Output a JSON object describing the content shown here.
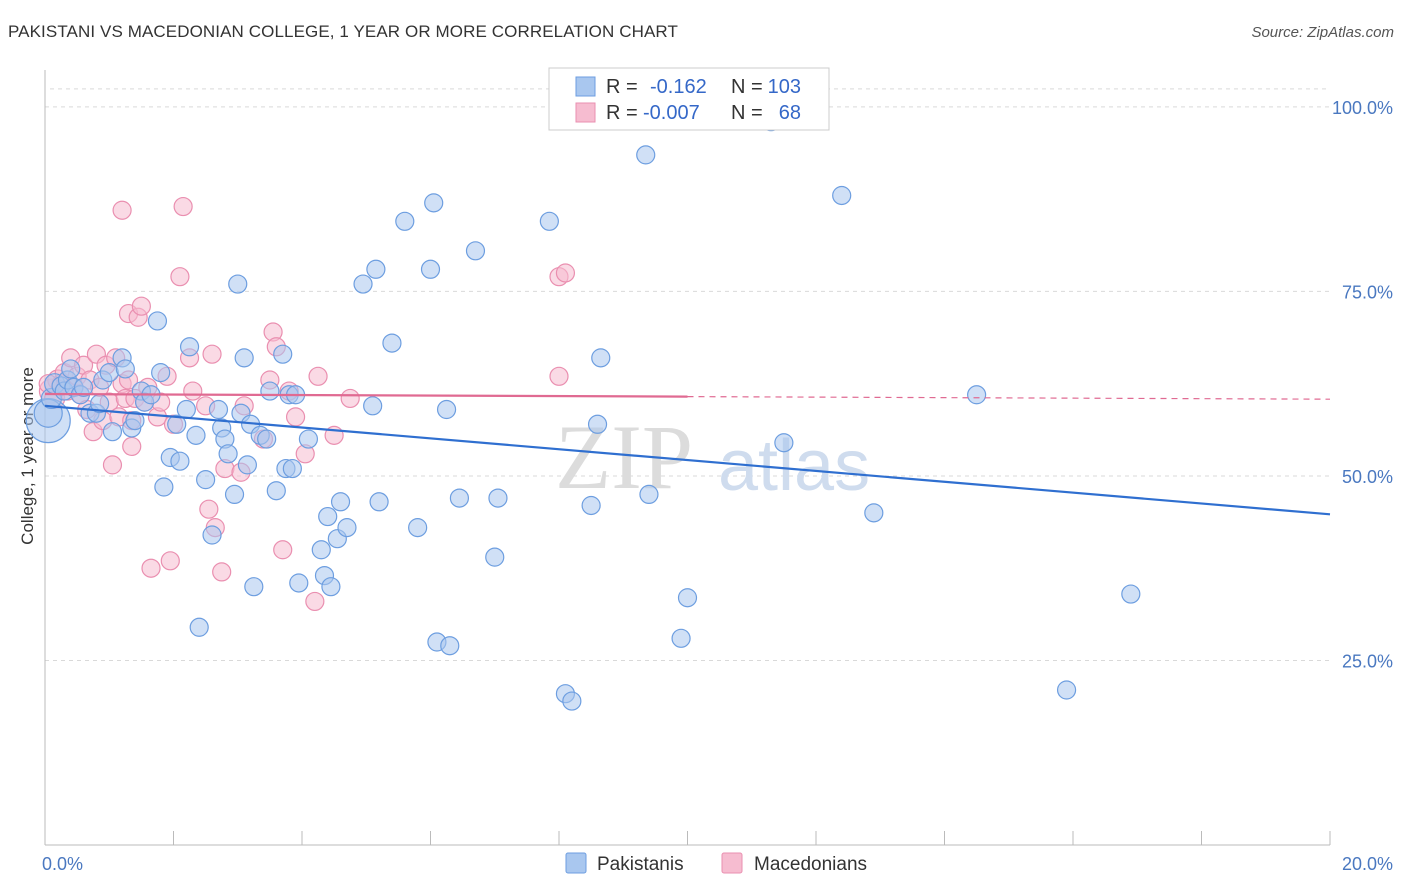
{
  "header": {
    "title": "PAKISTANI VS MACEDONIAN COLLEGE, 1 YEAR OR MORE CORRELATION CHART",
    "source": "Source: ZipAtlas.com"
  },
  "watermark": {
    "zip": "ZIP",
    "atlas": "atlas"
  },
  "colors": {
    "blue_fill": "#a9c7ef",
    "blue_stroke": "#6d9ee0",
    "blue_line": "#2f6fd0",
    "pink_fill": "#f6bcd0",
    "pink_stroke": "#ea8fb0",
    "pink_line": "#e06a92",
    "grid": "#d9d9d9",
    "tick_label": "#4a78c0"
  },
  "legend": {
    "r_label": "R =",
    "n_label": "N =",
    "rows": [
      {
        "r": "-0.162",
        "n": "103"
      },
      {
        "r": "-0.007",
        "n": "68"
      }
    ]
  },
  "chart_data": {
    "type": "scatter",
    "xlabel": "",
    "ylabel": "College, 1 year or more",
    "xlim": [
      0,
      20
    ],
    "ylim": [
      0,
      105
    ],
    "x_tick_labels": [
      "0.0%",
      "20.0%"
    ],
    "y_tick_values": [
      25,
      50,
      75,
      100
    ],
    "y_tick_labels": [
      "25.0%",
      "50.0%",
      "75.0%",
      "100.0%"
    ],
    "grid": true,
    "legend_position": "top-center",
    "series": [
      {
        "name": "Pakistanis",
        "r": -0.162,
        "n": 103,
        "trend": {
          "x": [
            0,
            20
          ],
          "y": [
            59.5,
            44.8
          ],
          "dashed_after": null
        },
        "points": [
          [
            0.05,
            57.5,
            22
          ],
          [
            0.05,
            58.5,
            14
          ],
          [
            0.1,
            60.5,
            10
          ],
          [
            0.15,
            62.5,
            10
          ],
          [
            0.25,
            62.2,
            9
          ],
          [
            0.3,
            61.5,
            9
          ],
          [
            0.35,
            63.0,
            9
          ],
          [
            0.4,
            64.5,
            9
          ],
          [
            0.45,
            62.0,
            9
          ],
          [
            0.55,
            61.0,
            9
          ],
          [
            0.6,
            62.0,
            9
          ],
          [
            0.7,
            58.5,
            9
          ],
          [
            0.8,
            58.5,
            9
          ],
          [
            0.85,
            59.8,
            9
          ],
          [
            0.9,
            63.0,
            9
          ],
          [
            1.0,
            64.0,
            9
          ],
          [
            1.05,
            56.0,
            9
          ],
          [
            1.2,
            66.0,
            9
          ],
          [
            1.25,
            64.5,
            9
          ],
          [
            1.35,
            56.5,
            9
          ],
          [
            1.4,
            57.5,
            9
          ],
          [
            1.5,
            61.5,
            9
          ],
          [
            1.55,
            60.0,
            9
          ],
          [
            1.65,
            61.0,
            9
          ],
          [
            1.75,
            71.0,
            9
          ],
          [
            1.8,
            64.0,
            9
          ],
          [
            1.85,
            48.5,
            9
          ],
          [
            1.95,
            52.5,
            9
          ],
          [
            2.05,
            57.0,
            9
          ],
          [
            2.1,
            52.0,
            9
          ],
          [
            2.2,
            59.0,
            9
          ],
          [
            2.25,
            67.5,
            9
          ],
          [
            2.35,
            55.5,
            9
          ],
          [
            2.4,
            29.5,
            9
          ],
          [
            2.5,
            49.5,
            9
          ],
          [
            2.6,
            42.0,
            9
          ],
          [
            2.7,
            59.0,
            9
          ],
          [
            2.75,
            56.5,
            9
          ],
          [
            2.8,
            55.0,
            9
          ],
          [
            2.85,
            53.0,
            9
          ],
          [
            2.95,
            47.5,
            9
          ],
          [
            3.0,
            76.0,
            9
          ],
          [
            3.05,
            58.5,
            9
          ],
          [
            3.1,
            66.0,
            9
          ],
          [
            3.15,
            51.5,
            9
          ],
          [
            3.2,
            57.0,
            9
          ],
          [
            3.25,
            35.0,
            9
          ],
          [
            3.35,
            55.5,
            9
          ],
          [
            3.45,
            55.0,
            9
          ],
          [
            3.5,
            61.5,
            9
          ],
          [
            3.6,
            48.0,
            9
          ],
          [
            3.7,
            66.5,
            9
          ],
          [
            3.75,
            51.0,
            9
          ],
          [
            3.8,
            61.0,
            9
          ],
          [
            3.85,
            51.0,
            9
          ],
          [
            3.9,
            61.0,
            9
          ],
          [
            3.95,
            35.5,
            9
          ],
          [
            4.1,
            55.0,
            9
          ],
          [
            4.3,
            40.0,
            9
          ],
          [
            4.35,
            36.5,
            9
          ],
          [
            4.4,
            44.5,
            9
          ],
          [
            4.45,
            35.0,
            9
          ],
          [
            4.55,
            41.5,
            9
          ],
          [
            4.6,
            46.5,
            9
          ],
          [
            4.7,
            43.0,
            9
          ],
          [
            4.95,
            76.0,
            9
          ],
          [
            5.1,
            59.5,
            9
          ],
          [
            5.15,
            78.0,
            9
          ],
          [
            5.2,
            46.5,
            9
          ],
          [
            5.4,
            68.0,
            9
          ],
          [
            5.6,
            84.5,
            9
          ],
          [
            5.8,
            43.0,
            9
          ],
          [
            6.0,
            78.0,
            9
          ],
          [
            6.05,
            87.0,
            9
          ],
          [
            6.1,
            27.5,
            9
          ],
          [
            6.25,
            59.0,
            9
          ],
          [
            6.3,
            27.0,
            9
          ],
          [
            6.45,
            47.0,
            9
          ],
          [
            6.7,
            80.5,
            9
          ],
          [
            7.0,
            39.0,
            9
          ],
          [
            7.05,
            47.0,
            9
          ],
          [
            7.85,
            84.5,
            9
          ],
          [
            8.0,
            98.5,
            9
          ],
          [
            8.1,
            20.5,
            9
          ],
          [
            8.2,
            19.5,
            9
          ],
          [
            8.5,
            46.0,
            9
          ],
          [
            8.6,
            57.0,
            9
          ],
          [
            8.65,
            66.0,
            9
          ],
          [
            9.35,
            93.5,
            9
          ],
          [
            9.4,
            47.5,
            9
          ],
          [
            9.9,
            28.0,
            9
          ],
          [
            10.0,
            33.5,
            9
          ],
          [
            11.3,
            98.0,
            9
          ],
          [
            11.5,
            54.5,
            9
          ],
          [
            12.4,
            88.0,
            9
          ],
          [
            12.9,
            45.0,
            9
          ],
          [
            14.5,
            61.0,
            9
          ],
          [
            16.9,
            34.0,
            9
          ],
          [
            15.9,
            21.0,
            9
          ]
        ]
      },
      {
        "name": "Macedonians",
        "r": -0.007,
        "n": 68,
        "trend": {
          "x": [
            0,
            20
          ],
          "y": [
            61.1,
            60.4
          ],
          "dashed_after": 10
        },
        "points": [
          [
            0.1,
            61.5,
            12
          ],
          [
            0.15,
            60.5,
            10
          ],
          [
            0.2,
            63.0,
            10
          ],
          [
            0.25,
            62.5,
            9
          ],
          [
            0.3,
            64.0,
            9
          ],
          [
            0.35,
            61.5,
            9
          ],
          [
            0.4,
            66.0,
            9
          ],
          [
            0.45,
            62.0,
            9
          ],
          [
            0.5,
            63.5,
            9
          ],
          [
            0.55,
            61.0,
            9
          ],
          [
            0.6,
            65.0,
            9
          ],
          [
            0.65,
            59.0,
            9
          ],
          [
            0.7,
            63.0,
            9
          ],
          [
            0.75,
            56.0,
            9
          ],
          [
            0.8,
            66.5,
            9
          ],
          [
            0.85,
            62.0,
            9
          ],
          [
            0.9,
            57.5,
            9
          ],
          [
            0.95,
            65.0,
            9
          ],
          [
            1.0,
            60.0,
            9
          ],
          [
            1.05,
            51.5,
            9
          ],
          [
            1.1,
            66.0,
            9
          ],
          [
            1.15,
            58.0,
            9
          ],
          [
            1.2,
            62.5,
            9
          ],
          [
            1.25,
            60.5,
            9
          ],
          [
            1.3,
            63.0,
            9
          ],
          [
            1.35,
            57.5,
            9
          ],
          [
            1.4,
            60.5,
            9
          ],
          [
            1.2,
            86.0,
            9
          ],
          [
            1.3,
            72.0,
            9
          ],
          [
            1.35,
            54.0,
            9
          ],
          [
            1.45,
            71.5,
            9
          ],
          [
            1.5,
            73.0,
            9
          ],
          [
            1.55,
            60.0,
            9
          ],
          [
            1.6,
            62.0,
            9
          ],
          [
            1.65,
            37.5,
            9
          ],
          [
            1.75,
            58.0,
            9
          ],
          [
            1.8,
            60.0,
            9
          ],
          [
            1.9,
            63.5,
            9
          ],
          [
            1.95,
            38.5,
            9
          ],
          [
            2.0,
            57.0,
            9
          ],
          [
            2.1,
            77.0,
            9
          ],
          [
            2.15,
            86.5,
            9
          ],
          [
            2.25,
            66.0,
            9
          ],
          [
            2.3,
            61.5,
            9
          ],
          [
            2.5,
            59.5,
            9
          ],
          [
            2.55,
            45.5,
            9
          ],
          [
            2.6,
            66.5,
            9
          ],
          [
            2.65,
            43.0,
            9
          ],
          [
            2.75,
            37.0,
            9
          ],
          [
            2.8,
            51.0,
            9
          ],
          [
            3.05,
            50.5,
            9
          ],
          [
            3.1,
            59.5,
            9
          ],
          [
            3.4,
            55.0,
            9
          ],
          [
            3.5,
            63.0,
            9
          ],
          [
            3.55,
            69.5,
            9
          ],
          [
            3.6,
            67.5,
            9
          ],
          [
            3.7,
            40.0,
            9
          ],
          [
            3.8,
            61.5,
            9
          ],
          [
            3.9,
            58.0,
            9
          ],
          [
            4.05,
            53.0,
            9
          ],
          [
            4.2,
            33.0,
            9
          ],
          [
            4.25,
            63.5,
            9
          ],
          [
            4.5,
            55.5,
            9
          ],
          [
            4.75,
            60.5,
            9
          ],
          [
            8.0,
            77.0,
            9
          ],
          [
            8.1,
            77.5,
            9
          ],
          [
            8.0,
            63.5,
            9
          ],
          [
            0.05,
            62.5,
            9
          ]
        ]
      }
    ]
  },
  "bottom_legend": {
    "items": [
      "Pakistanis",
      "Macedonians"
    ]
  }
}
